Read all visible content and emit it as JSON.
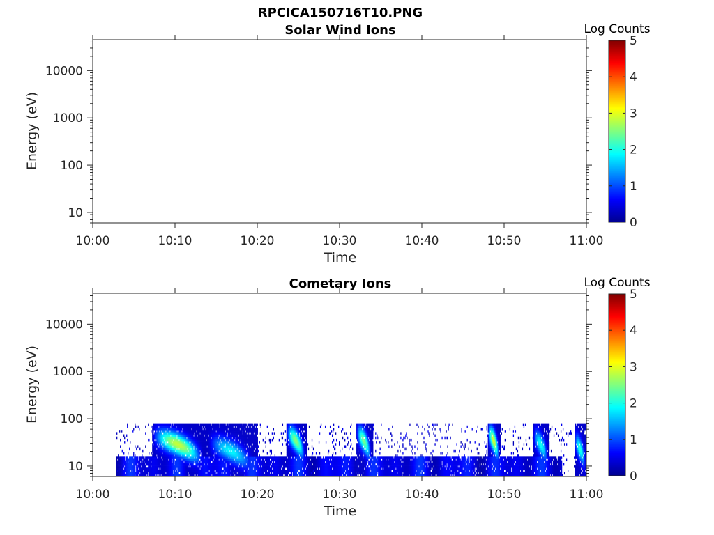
{
  "figure_title": "RPCICA150716T10.PNG",
  "chart_data": [
    {
      "type": "heatmap",
      "title": "Solar Wind Ions",
      "xlabel": "Time",
      "ylabel": "Energy (eV)",
      "x_ticks": [
        "10:00",
        "10:10",
        "10:20",
        "10:30",
        "10:40",
        "10:50",
        "11:00"
      ],
      "xlim_minutes": [
        0,
        60
      ],
      "y_scale": "log",
      "y_ticks": [
        10,
        100,
        1000,
        10000
      ],
      "y_tick_labels": [
        "10",
        "100",
        "1000",
        "10000"
      ],
      "ylim": [
        6,
        45000
      ],
      "colorbar": {
        "label": "Log Counts",
        "ticks": [
          "0",
          "1",
          "2",
          "3",
          "4",
          "5"
        ],
        "range": [
          0,
          5
        ],
        "colormap": "jet"
      },
      "cells": []
    },
    {
      "type": "heatmap",
      "title": "Cometary Ions",
      "xlabel": "Time",
      "ylabel": "Energy (eV)",
      "x_ticks": [
        "10:00",
        "10:10",
        "10:20",
        "10:30",
        "10:40",
        "10:50",
        "11:00"
      ],
      "xlim_minutes": [
        0,
        60
      ],
      "y_scale": "log",
      "y_ticks": [
        10,
        100,
        1000,
        10000
      ],
      "y_tick_labels": [
        "10",
        "100",
        "1000",
        "10000"
      ],
      "ylim": [
        6,
        45000
      ],
      "colorbar": {
        "label": "Log Counts",
        "ticks": [
          "0",
          "1",
          "2",
          "3",
          "4",
          "5"
        ],
        "range": [
          0,
          5
        ],
        "colormap": "jet"
      },
      "data_extent": {
        "t_start_minutes": 2.8,
        "t_end_minutes": 60,
        "energy_min_ev": 6,
        "energy_max_ev": 80
      },
      "features": [
        {
          "t_start": 7.2,
          "t_end": 14,
          "peak_energy_ev": 25,
          "peak_log_counts": 2.5
        },
        {
          "t_start": 14,
          "t_end": 20,
          "peak_energy_ev": 18,
          "peak_log_counts": 1.5
        },
        {
          "t_start": 23.5,
          "t_end": 26,
          "peak_energy_ev": 30,
          "peak_log_counts": 2.2
        },
        {
          "t_start": 32,
          "t_end": 34,
          "peak_energy_ev": 30,
          "peak_log_counts": 2.1
        },
        {
          "t_start": 48,
          "t_end": 49.5,
          "peak_energy_ev": 30,
          "peak_log_counts": 2.6
        },
        {
          "t_start": 53.5,
          "t_end": 55.5,
          "peak_energy_ev": 25,
          "peak_log_counts": 1.6
        },
        {
          "t_start": 58.5,
          "t_end": 60,
          "peak_energy_ev": 20,
          "peak_log_counts": 1.7
        }
      ]
    }
  ]
}
